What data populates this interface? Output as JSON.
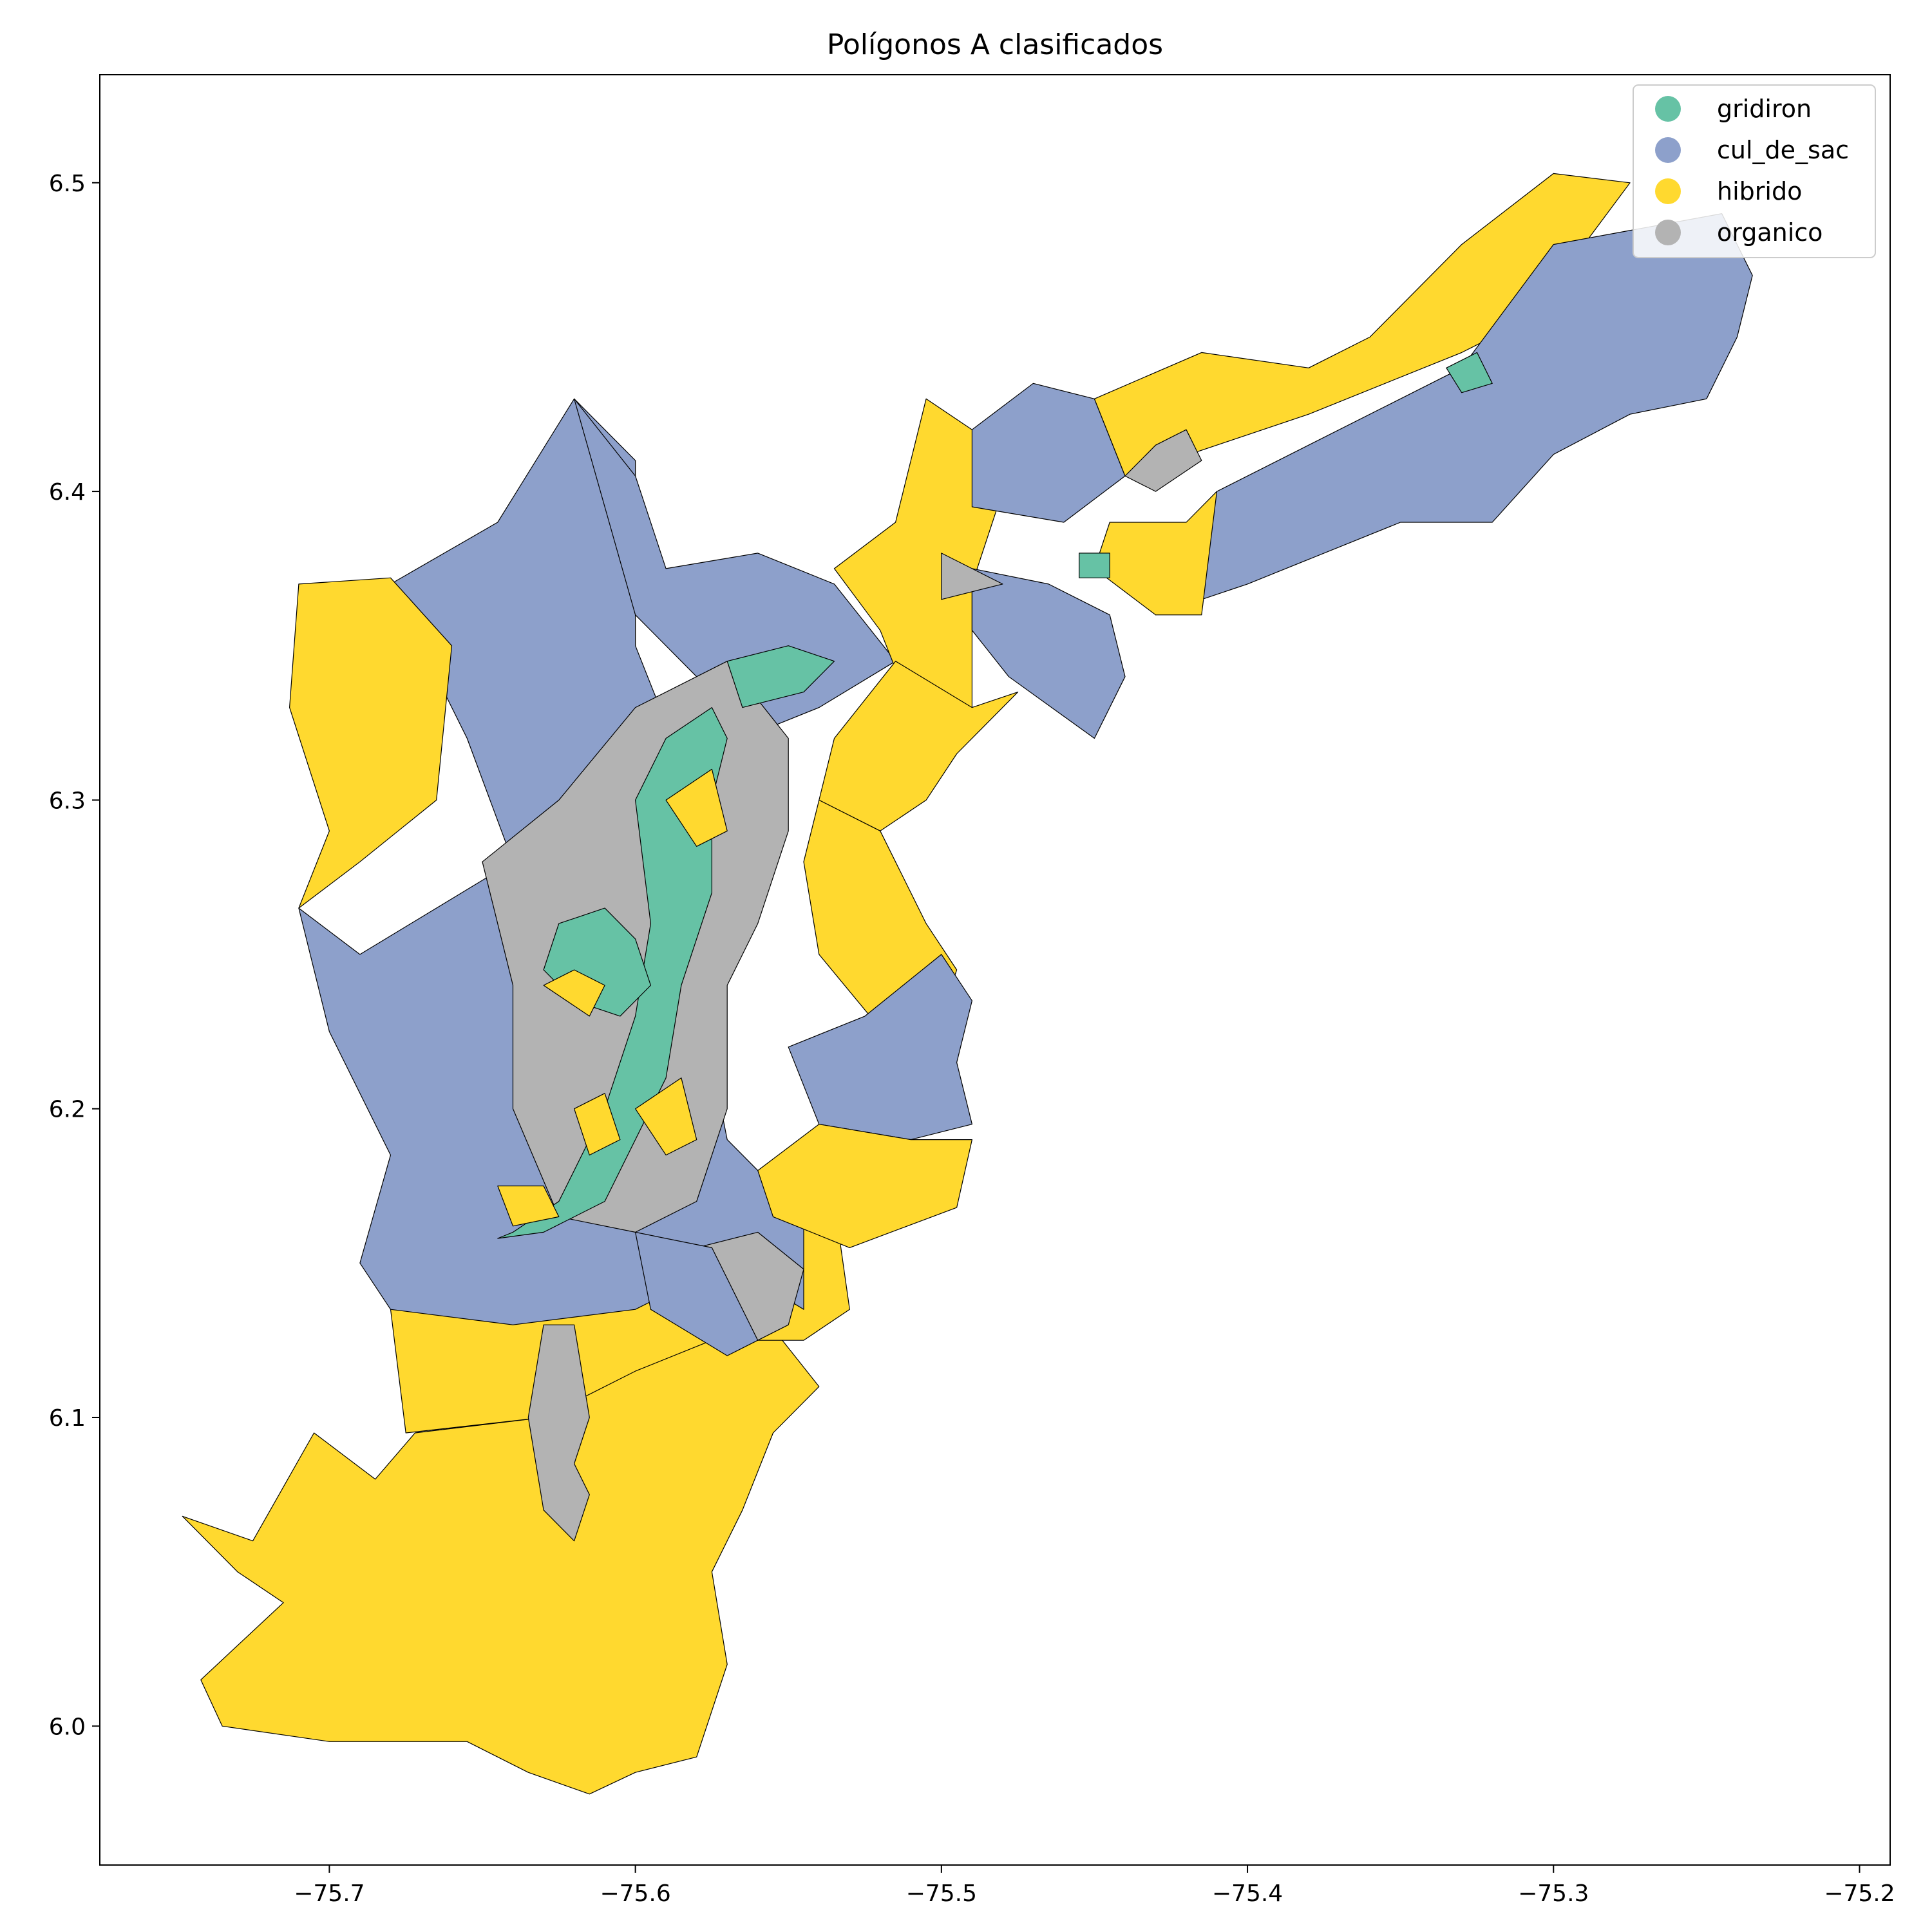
{
  "title": "Polígonos A clasificados",
  "chart_data": {
    "type": "map",
    "title": "Polígonos A clasificados",
    "xlabel": "",
    "ylabel": "",
    "xlim": [
      -75.775,
      -75.19
    ],
    "ylim": [
      5.955,
      6.535
    ],
    "x_ticks": [
      {
        "value": -75.7,
        "label": "−75.7"
      },
      {
        "value": -75.6,
        "label": "−75.6"
      },
      {
        "value": -75.5,
        "label": "−75.5"
      },
      {
        "value": -75.4,
        "label": "−75.4"
      },
      {
        "value": -75.3,
        "label": "−75.3"
      },
      {
        "value": -75.2,
        "label": "−75.2"
      }
    ],
    "y_ticks": [
      {
        "value": 6.0,
        "label": "6.0"
      },
      {
        "value": 6.1,
        "label": "6.1"
      },
      {
        "value": 6.2,
        "label": "6.2"
      },
      {
        "value": 6.3,
        "label": "6.3"
      },
      {
        "value": 6.4,
        "label": "6.4"
      },
      {
        "value": 6.5,
        "label": "6.5"
      }
    ],
    "legend_position": "top-right",
    "categories": [
      {
        "name": "gridiron",
        "color": "#66c2a5"
      },
      {
        "name": "cul_de_sac",
        "color": "#8da0cb"
      },
      {
        "name": "hibrido",
        "color": "#ffd92f"
      },
      {
        "name": "organico",
        "color": "#b3b3b3"
      }
    ],
    "regions": [
      {
        "class": "hibrido",
        "pts": [
          [
            -75.615,
            5.978
          ],
          [
            -75.6,
            5.985
          ],
          [
            -75.58,
            5.99
          ],
          [
            -75.57,
            6.02
          ],
          [
            -75.575,
            6.05
          ],
          [
            -75.565,
            6.07
          ],
          [
            -75.555,
            6.095
          ],
          [
            -75.54,
            6.11
          ],
          [
            -75.56,
            6.135
          ],
          [
            -75.6,
            6.125
          ],
          [
            -75.63,
            6.1
          ],
          [
            -75.672,
            6.095
          ],
          [
            -75.685,
            6.08
          ],
          [
            -75.705,
            6.095
          ],
          [
            -75.725,
            6.06
          ],
          [
            -75.748,
            6.068
          ],
          [
            -75.73,
            6.05
          ],
          [
            -75.715,
            6.04
          ],
          [
            -75.742,
            6.015
          ],
          [
            -75.735,
            6.0
          ],
          [
            -75.7,
            5.995
          ],
          [
            -75.655,
            5.995
          ],
          [
            -75.635,
            5.985
          ]
        ]
      },
      {
        "class": "hibrido",
        "pts": [
          [
            -75.675,
            6.095
          ],
          [
            -75.63,
            6.1
          ],
          [
            -75.6,
            6.115
          ],
          [
            -75.575,
            6.125
          ],
          [
            -75.545,
            6.125
          ],
          [
            -75.53,
            6.135
          ],
          [
            -75.535,
            6.17
          ],
          [
            -75.57,
            6.165
          ],
          [
            -75.6,
            6.16
          ],
          [
            -75.64,
            6.15
          ],
          [
            -75.68,
            6.135
          ]
        ]
      },
      {
        "class": "cul_de_sac",
        "pts": [
          [
            -75.68,
            6.135
          ],
          [
            -75.64,
            6.13
          ],
          [
            -75.6,
            6.135
          ],
          [
            -75.57,
            6.15
          ],
          [
            -75.545,
            6.135
          ],
          [
            -75.545,
            6.165
          ],
          [
            -75.57,
            6.19
          ],
          [
            -75.58,
            6.24
          ],
          [
            -75.6,
            6.27
          ],
          [
            -75.58,
            6.3
          ],
          [
            -75.6,
            6.35
          ],
          [
            -75.6,
            6.41
          ],
          [
            -75.62,
            6.43
          ],
          [
            -75.645,
            6.39
          ],
          [
            -75.68,
            6.37
          ],
          [
            -75.655,
            6.32
          ],
          [
            -75.64,
            6.28
          ],
          [
            -75.69,
            6.25
          ],
          [
            -75.71,
            6.265
          ],
          [
            -75.7,
            6.225
          ],
          [
            -75.68,
            6.185
          ],
          [
            -75.69,
            6.15
          ]
        ]
      },
      {
        "class": "hibrido",
        "pts": [
          [
            -75.71,
            6.265
          ],
          [
            -75.7,
            6.29
          ],
          [
            -75.713,
            6.33
          ],
          [
            -75.71,
            6.37
          ],
          [
            -75.68,
            6.372
          ],
          [
            -75.66,
            6.35
          ],
          [
            -75.665,
            6.3
          ],
          [
            -75.69,
            6.28
          ]
        ]
      },
      {
        "class": "cul_de_sac",
        "pts": [
          [
            -75.62,
            6.43
          ],
          [
            -75.6,
            6.405
          ],
          [
            -75.59,
            6.375
          ],
          [
            -75.56,
            6.38
          ],
          [
            -75.535,
            6.37
          ],
          [
            -75.515,
            6.345
          ],
          [
            -75.54,
            6.33
          ],
          [
            -75.565,
            6.32
          ],
          [
            -75.58,
            6.34
          ],
          [
            -75.6,
            6.36
          ]
        ]
      },
      {
        "class": "hibrido",
        "pts": [
          [
            -75.535,
            6.375
          ],
          [
            -75.515,
            6.39
          ],
          [
            -75.505,
            6.43
          ],
          [
            -75.49,
            6.42
          ],
          [
            -75.48,
            6.4
          ],
          [
            -75.49,
            6.37
          ],
          [
            -75.49,
            6.35
          ],
          [
            -75.49,
            6.33
          ],
          [
            -75.51,
            6.33
          ],
          [
            -75.52,
            6.355
          ]
        ]
      },
      {
        "class": "cul_de_sac",
        "pts": [
          [
            -75.49,
            6.42
          ],
          [
            -75.47,
            6.435
          ],
          [
            -75.45,
            6.43
          ],
          [
            -75.44,
            6.405
          ],
          [
            -75.46,
            6.39
          ],
          [
            -75.49,
            6.395
          ]
        ]
      },
      {
        "class": "hibrido",
        "pts": [
          [
            -75.45,
            6.43
          ],
          [
            -75.415,
            6.445
          ],
          [
            -75.38,
            6.44
          ],
          [
            -75.36,
            6.45
          ],
          [
            -75.33,
            6.48
          ],
          [
            -75.3,
            6.503
          ],
          [
            -75.275,
            6.5
          ],
          [
            -75.29,
            6.48
          ],
          [
            -75.3,
            6.46
          ],
          [
            -75.33,
            6.445
          ],
          [
            -75.38,
            6.425
          ],
          [
            -75.41,
            6.415
          ],
          [
            -75.44,
            6.405
          ]
        ]
      },
      {
        "class": "cul_de_sac",
        "pts": [
          [
            -75.3,
            6.48
          ],
          [
            -75.245,
            6.49
          ],
          [
            -75.235,
            6.47
          ],
          [
            -75.24,
            6.45
          ],
          [
            -75.25,
            6.43
          ],
          [
            -75.275,
            6.425
          ],
          [
            -75.3,
            6.412
          ],
          [
            -75.32,
            6.39
          ],
          [
            -75.35,
            6.39
          ],
          [
            -75.4,
            6.37
          ],
          [
            -75.43,
            6.36
          ],
          [
            -75.41,
            6.4
          ],
          [
            -75.33,
            6.44
          ]
        ]
      },
      {
        "class": "hibrido",
        "pts": [
          [
            -75.43,
            6.36
          ],
          [
            -75.415,
            6.36
          ],
          [
            -75.41,
            6.4
          ],
          [
            -75.42,
            6.39
          ],
          [
            -75.445,
            6.39
          ],
          [
            -75.45,
            6.375
          ]
        ]
      },
      {
        "class": "cul_de_sac",
        "pts": [
          [
            -75.49,
            6.375
          ],
          [
            -75.465,
            6.37
          ],
          [
            -75.445,
            6.36
          ],
          [
            -75.44,
            6.34
          ],
          [
            -75.45,
            6.32
          ],
          [
            -75.478,
            6.34
          ],
          [
            -75.49,
            6.355
          ]
        ]
      },
      {
        "class": "hibrido",
        "pts": [
          [
            -75.515,
            6.345
          ],
          [
            -75.49,
            6.33
          ],
          [
            -75.475,
            6.335
          ],
          [
            -75.495,
            6.315
          ],
          [
            -75.505,
            6.3
          ],
          [
            -75.52,
            6.29
          ],
          [
            -75.54,
            6.3
          ],
          [
            -75.535,
            6.32
          ]
        ]
      },
      {
        "class": "hibrido",
        "pts": [
          [
            -75.54,
            6.3
          ],
          [
            -75.52,
            6.29
          ],
          [
            -75.505,
            6.26
          ],
          [
            -75.495,
            6.245
          ],
          [
            -75.5,
            6.23
          ],
          [
            -75.515,
            6.22
          ],
          [
            -75.54,
            6.25
          ],
          [
            -75.545,
            6.28
          ]
        ]
      },
      {
        "class": "cul_de_sac",
        "pts": [
          [
            -75.5,
            6.25
          ],
          [
            -75.49,
            6.235
          ],
          [
            -75.495,
            6.215
          ],
          [
            -75.49,
            6.195
          ],
          [
            -75.51,
            6.19
          ],
          [
            -75.54,
            6.195
          ],
          [
            -75.55,
            6.22
          ],
          [
            -75.525,
            6.23
          ]
        ]
      },
      {
        "class": "hibrido",
        "pts": [
          [
            -75.51,
            6.19
          ],
          [
            -75.49,
            6.19
          ],
          [
            -75.495,
            6.168
          ],
          [
            -75.53,
            6.155
          ],
          [
            -75.555,
            6.165
          ],
          [
            -75.56,
            6.18
          ],
          [
            -75.54,
            6.195
          ]
        ]
      },
      {
        "class": "organico",
        "pts": [
          [
            -75.58,
            6.155
          ],
          [
            -75.56,
            6.16
          ],
          [
            -75.545,
            6.148
          ],
          [
            -75.55,
            6.13
          ],
          [
            -75.56,
            6.125
          ],
          [
            -75.575,
            6.14
          ]
        ]
      },
      {
        "class": "cul_de_sac",
        "pts": [
          [
            -75.6,
            6.16
          ],
          [
            -75.575,
            6.155
          ],
          [
            -75.56,
            6.125
          ],
          [
            -75.57,
            6.12
          ],
          [
            -75.595,
            6.135
          ]
        ]
      },
      {
        "class": "organico",
        "pts": [
          [
            -75.63,
            6.13
          ],
          [
            -75.62,
            6.13
          ],
          [
            -75.615,
            6.1
          ],
          [
            -75.62,
            6.085
          ],
          [
            -75.615,
            6.075
          ],
          [
            -75.62,
            6.06
          ],
          [
            -75.63,
            6.07
          ],
          [
            -75.635,
            6.1
          ]
        ]
      },
      {
        "class": "organico",
        "pts": [
          [
            -75.6,
            6.33
          ],
          [
            -75.57,
            6.345
          ],
          [
            -75.55,
            6.32
          ],
          [
            -75.55,
            6.29
          ],
          [
            -75.56,
            6.26
          ],
          [
            -75.57,
            6.24
          ],
          [
            -75.57,
            6.2
          ],
          [
            -75.58,
            6.17
          ],
          [
            -75.6,
            6.16
          ],
          [
            -75.625,
            6.165
          ],
          [
            -75.64,
            6.2
          ],
          [
            -75.64,
            6.24
          ],
          [
            -75.65,
            6.28
          ],
          [
            -75.625,
            6.3
          ]
        ]
      },
      {
        "class": "gridiron",
        "pts": [
          [
            -75.645,
            6.158
          ],
          [
            -75.63,
            6.16
          ],
          [
            -75.61,
            6.17
          ],
          [
            -75.6,
            6.19
          ],
          [
            -75.59,
            6.21
          ],
          [
            -75.585,
            6.24
          ],
          [
            -75.575,
            6.27
          ],
          [
            -75.575,
            6.3
          ],
          [
            -75.57,
            6.32
          ],
          [
            -75.575,
            6.33
          ],
          [
            -75.59,
            6.32
          ],
          [
            -75.6,
            6.3
          ],
          [
            -75.595,
            6.26
          ],
          [
            -75.6,
            6.23
          ],
          [
            -75.61,
            6.2
          ],
          [
            -75.625,
            6.17
          ],
          [
            -75.64,
            6.16
          ]
        ]
      },
      {
        "class": "gridiron",
        "pts": [
          [
            -75.625,
            6.26
          ],
          [
            -75.61,
            6.265
          ],
          [
            -75.6,
            6.255
          ],
          [
            -75.595,
            6.24
          ],
          [
            -75.605,
            6.23
          ],
          [
            -75.62,
            6.235
          ],
          [
            -75.63,
            6.245
          ]
        ]
      },
      {
        "class": "gridiron",
        "pts": [
          [
            -75.57,
            6.345
          ],
          [
            -75.55,
            6.35
          ],
          [
            -75.535,
            6.345
          ],
          [
            -75.545,
            6.335
          ],
          [
            -75.565,
            6.33
          ]
        ]
      },
      {
        "class": "hibrido",
        "pts": [
          [
            -75.63,
            6.24
          ],
          [
            -75.62,
            6.245
          ],
          [
            -75.61,
            6.24
          ],
          [
            -75.615,
            6.23
          ]
        ]
      },
      {
        "class": "hibrido",
        "pts": [
          [
            -75.59,
            6.3
          ],
          [
            -75.575,
            6.31
          ],
          [
            -75.57,
            6.29
          ],
          [
            -75.58,
            6.285
          ]
        ]
      },
      {
        "class": "hibrido",
        "pts": [
          [
            -75.6,
            6.2
          ],
          [
            -75.585,
            6.21
          ],
          [
            -75.58,
            6.19
          ],
          [
            -75.59,
            6.185
          ]
        ]
      },
      {
        "class": "hibrido",
        "pts": [
          [
            -75.645,
            6.175
          ],
          [
            -75.63,
            6.175
          ],
          [
            -75.625,
            6.165
          ],
          [
            -75.64,
            6.162
          ]
        ]
      },
      {
        "class": "hibrido",
        "pts": [
          [
            -75.62,
            6.2
          ],
          [
            -75.61,
            6.205
          ],
          [
            -75.605,
            6.19
          ],
          [
            -75.615,
            6.185
          ]
        ]
      },
      {
        "class": "organico",
        "pts": [
          [
            -75.5,
            6.38
          ],
          [
            -75.49,
            6.375
          ],
          [
            -75.48,
            6.37
          ],
          [
            -75.5,
            6.365
          ]
        ]
      },
      {
        "class": "organico",
        "pts": [
          [
            -75.44,
            6.405
          ],
          [
            -75.43,
            6.415
          ],
          [
            -75.42,
            6.42
          ],
          [
            -75.415,
            6.41
          ],
          [
            -75.43,
            6.4
          ]
        ]
      },
      {
        "class": "gridiron",
        "pts": [
          [
            -75.335,
            6.44
          ],
          [
            -75.325,
            6.445
          ],
          [
            -75.32,
            6.435
          ],
          [
            -75.33,
            6.432
          ]
        ]
      },
      {
        "class": "gridiron",
        "pts": [
          [
            -75.455,
            6.38
          ],
          [
            -75.445,
            6.38
          ],
          [
            -75.445,
            6.372
          ],
          [
            -75.455,
            6.372
          ]
        ]
      }
    ]
  }
}
